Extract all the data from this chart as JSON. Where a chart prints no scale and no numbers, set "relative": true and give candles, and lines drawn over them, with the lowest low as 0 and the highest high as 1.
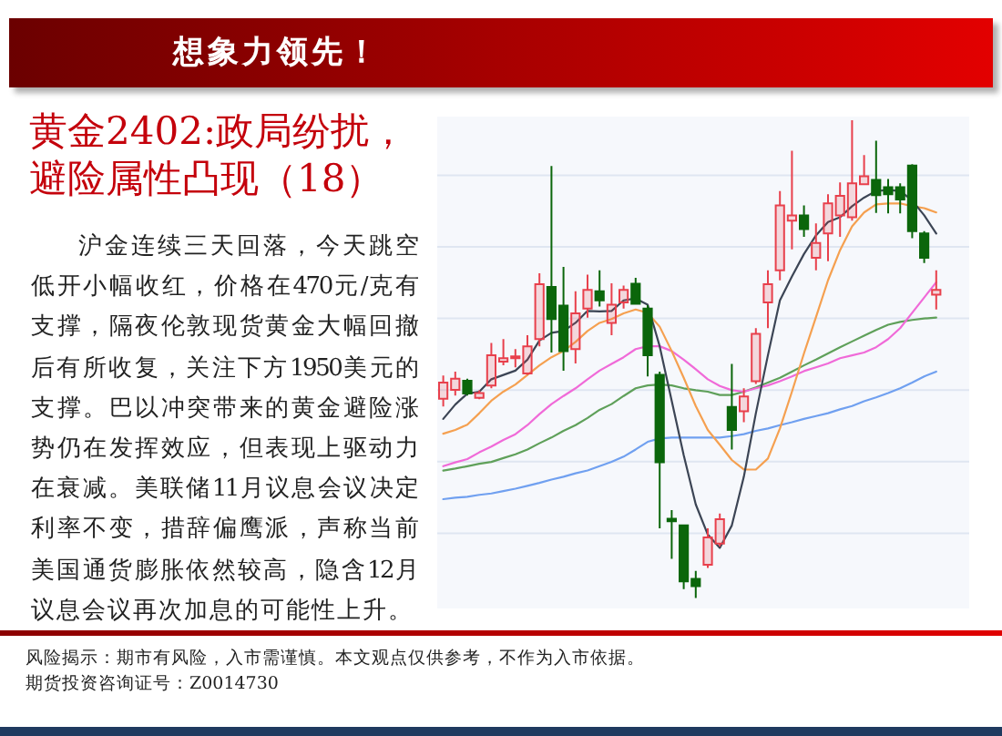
{
  "chart_data": {
    "type": "candlestick",
    "title": "黄金2402:政局纷扰，避险属性凸现（18）",
    "subtitle": "沪金连续三天回落，今天跳空低开小幅收红，价格在470元/克有支撑，隔夜伦敦现货黄金大幅回撤后有所收复，关注下方1950美元的支撑。巴以冲突带来的黄金避险涨势仍在发挥效应，但表现上驱动力在衰减。美联储11月议息会议决定利率不变，措辞偏鹰派，声称当前美国通货膨胀依然较高，隐含12月议息会议再次加息的可能性上升。",
    "annotations": [
      "想象力领先！",
      "风险揭示：期市有风险，入市需谨慎。本文观点仅供参考，不作为入市依据。",
      "期货投资咨询证号：Z0014730"
    ],
    "relative": true,
    "grid": "y",
    "categories": [
      null,
      null,
      null,
      null,
      null,
      null,
      null,
      null,
      null,
      null,
      null,
      null,
      null,
      null,
      null,
      null,
      null,
      null,
      null,
      null,
      null,
      null,
      null,
      null,
      null,
      null,
      null,
      null,
      null,
      null,
      null,
      null,
      null,
      null,
      null,
      null,
      null,
      null,
      null,
      null,
      null,
      null
    ],
    "ohlc": [
      [
        0.417,
        0.466,
        0.401,
        0.451
      ],
      [
        0.436,
        0.474,
        0.424,
        0.459
      ],
      [
        0.455,
        0.459,
        0.424,
        0.428
      ],
      [
        0.419,
        0.435,
        0.416,
        0.429
      ],
      [
        0.445,
        0.534,
        0.439,
        0.508
      ],
      [
        0.495,
        0.542,
        0.487,
        0.502
      ],
      [
        0.502,
        0.521,
        0.483,
        0.506
      ],
      [
        0.47,
        0.55,
        0.467,
        0.527
      ],
      [
        0.542,
        0.68,
        0.527,
        0.657
      ],
      [
        0.651,
        0.904,
        0.514,
        0.584
      ],
      [
        0.612,
        0.693,
        0.476,
        0.517
      ],
      [
        0.521,
        0.642,
        0.491,
        0.596
      ],
      [
        0.606,
        0.677,
        0.587,
        0.645
      ],
      [
        0.642,
        0.686,
        0.61,
        0.623
      ],
      [
        0.576,
        0.659,
        0.55,
        0.614
      ],
      [
        0.619,
        0.654,
        0.606,
        0.645
      ],
      [
        0.658,
        0.67,
        0.614,
        0.616
      ],
      [
        0.606,
        0.613,
        0.464,
        0.508
      ],
      [
        0.467,
        0.474,
        0.146,
        0.284
      ],
      [
        0.166,
        0.184,
        0.082,
        0.161
      ],
      [
        0.152,
        0.152,
        0.019,
        0.035
      ],
      [
        0.04,
        0.057,
        0.0,
        0.025
      ],
      [
        0.07,
        0.146,
        0.063,
        0.127
      ],
      [
        0.114,
        0.177,
        0.108,
        0.165
      ],
      [
        0.4,
        0.49,
        0.311,
        0.352
      ],
      [
        0.391,
        0.439,
        0.368,
        0.422
      ],
      [
        0.454,
        0.565,
        0.448,
        0.553
      ],
      [
        0.619,
        0.686,
        0.565,
        0.657
      ],
      [
        0.686,
        0.852,
        0.665,
        0.822
      ],
      [
        0.79,
        0.936,
        0.73,
        0.801
      ],
      [
        0.801,
        0.822,
        0.756,
        0.772
      ],
      [
        0.712,
        0.784,
        0.686,
        0.743
      ],
      [
        0.763,
        0.845,
        0.705,
        0.826
      ],
      [
        0.801,
        0.87,
        0.756,
        0.842
      ],
      [
        0.797,
        1.0,
        0.79,
        0.868
      ],
      [
        0.866,
        0.927,
        0.864,
        0.883
      ],
      [
        0.875,
        0.957,
        0.806,
        0.843
      ],
      [
        0.86,
        0.877,
        0.805,
        0.845
      ],
      [
        0.86,
        0.868,
        0.805,
        0.834
      ],
      [
        0.905,
        0.908,
        0.753,
        0.768
      ],
      [
        0.763,
        0.768,
        0.701,
        0.712
      ],
      [
        0.635,
        0.686,
        0.604,
        0.645
      ]
    ],
    "colors": [
      "#e8404c",
      "#e8404c",
      "#0b660b",
      "#e8404c",
      "#e8404c",
      "#e8404c",
      "#e8404c",
      "#e8404c",
      "#e8404c",
      "#0b660b",
      "#0b660b",
      "#e8404c",
      "#e8404c",
      "#0b660b",
      "#e8404c",
      "#e8404c",
      "#0b660b",
      "#0b660b",
      "#0b660b",
      "#0b660b",
      "#0b660b",
      "#0b660b",
      "#e8404c",
      "#e8404c",
      "#0b660b",
      "#e8404c",
      "#e8404c",
      "#e8404c",
      "#e8404c",
      "#e8404c",
      "#0b660b",
      "#e8404c",
      "#e8404c",
      "#e8404c",
      "#e8404c",
      "#e8404c",
      "#0b660b",
      "#0b660b",
      "#0b660b",
      "#0b660b",
      "#0b660b",
      "#e8404c"
    ],
    "series": [
      {
        "type": "line",
        "color": "#70a0f0",
        "values": [
          0.207,
          0.21,
          0.212,
          0.216,
          0.219,
          0.224,
          0.229,
          0.235,
          0.241,
          0.248,
          0.254,
          0.261,
          0.267,
          0.276,
          0.285,
          0.296,
          0.311,
          0.327,
          0.334,
          0.336,
          0.336,
          0.336,
          0.336,
          0.336,
          0.339,
          0.343,
          0.35,
          0.355,
          0.362,
          0.368,
          0.375,
          0.381,
          0.387,
          0.395,
          0.402,
          0.412,
          0.42,
          0.429,
          0.439,
          0.451,
          0.464,
          0.474
        ]
      },
      {
        "type": "line",
        "color": "#5fa05a",
        "values": [
          0.267,
          0.271,
          0.276,
          0.281,
          0.285,
          0.293,
          0.301,
          0.311,
          0.324,
          0.336,
          0.35,
          0.362,
          0.377,
          0.394,
          0.406,
          0.423,
          0.439,
          0.445,
          0.447,
          0.445,
          0.439,
          0.435,
          0.432,
          0.425,
          0.425,
          0.432,
          0.441,
          0.451,
          0.461,
          0.474,
          0.487,
          0.499,
          0.512,
          0.525,
          0.537,
          0.549,
          0.561,
          0.572,
          0.578,
          0.582,
          0.585,
          0.587
        ]
      },
      {
        "type": "line",
        "color": "#f06ad8",
        "values": [
          0.276,
          0.284,
          0.291,
          0.305,
          0.317,
          0.331,
          0.343,
          0.362,
          0.385,
          0.406,
          0.423,
          0.439,
          0.458,
          0.476,
          0.49,
          0.504,
          0.521,
          0.527,
          0.527,
          0.517,
          0.499,
          0.479,
          0.458,
          0.444,
          0.435,
          0.432,
          0.439,
          0.445,
          0.454,
          0.464,
          0.475,
          0.483,
          0.491,
          0.502,
          0.508,
          0.514,
          0.525,
          0.542,
          0.565,
          0.597,
          0.629,
          0.661
        ]
      },
      {
        "type": "line",
        "color": "#f5a050",
        "values": [
          0.344,
          0.352,
          0.363,
          0.387,
          0.413,
          0.432,
          0.447,
          0.467,
          0.487,
          0.504,
          0.517,
          0.536,
          0.559,
          0.576,
          0.584,
          0.596,
          0.604,
          0.597,
          0.568,
          0.517,
          0.461,
          0.402,
          0.352,
          0.321,
          0.289,
          0.269,
          0.269,
          0.292,
          0.355,
          0.432,
          0.512,
          0.588,
          0.665,
          0.728,
          0.778,
          0.807,
          0.824,
          0.826,
          0.826,
          0.82,
          0.816,
          0.807
        ]
      },
      {
        "type": "line",
        "color": "#3c4555",
        "values": [
          0.375,
          0.405,
          0.428,
          0.432,
          0.458,
          0.467,
          0.476,
          0.499,
          0.539,
          0.555,
          0.559,
          0.576,
          0.601,
          0.6,
          0.601,
          0.623,
          0.627,
          0.614,
          0.527,
          0.413,
          0.299,
          0.196,
          0.133,
          0.105,
          0.152,
          0.254,
          0.387,
          0.508,
          0.623,
          0.673,
          0.72,
          0.759,
          0.787,
          0.797,
          0.82,
          0.838,
          0.852,
          0.854,
          0.852,
          0.832,
          0.801,
          0.763
        ]
      }
    ]
  }
}
